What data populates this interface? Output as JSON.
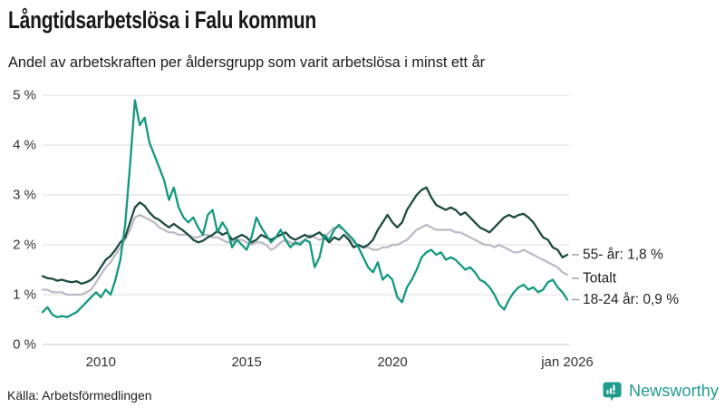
{
  "header": {
    "title": "Långtidsarbetslösa i Falu kommun",
    "subtitle": "Andel av arbetskraften per åldersgrupp som varit arbetslösa i minst ett år"
  },
  "source": {
    "label": "Källa: Arbetsförmedlingen"
  },
  "branding": {
    "name": "Newsworthy",
    "color": "#1f9c8e"
  },
  "chart_data": {
    "type": "line",
    "title": "Långtidsarbetslösa i Falu kommun",
    "subtitle": "Andel av arbetskraften per åldersgrupp som varit arbetslösa i minst ett år",
    "source": "Källa: Arbetsförmedlingen",
    "x_unit": "year",
    "x_start": 2008.0,
    "x_step": 0.166667,
    "xlim": [
      2008,
      2026.1
    ],
    "ylim": [
      0,
      5
    ],
    "grid": true,
    "legend_position": "right-end-labels",
    "y_ticks": [
      {
        "v": 0,
        "label": "0 %"
      },
      {
        "v": 1,
        "label": "1 %"
      },
      {
        "v": 2,
        "label": "2 %"
      },
      {
        "v": 3,
        "label": "3 %"
      },
      {
        "v": 4,
        "label": "4 %"
      },
      {
        "v": 5,
        "label": "5 %"
      }
    ],
    "x_ticks": [
      {
        "x": 2010,
        "label": "2010"
      },
      {
        "x": 2015,
        "label": "2015"
      },
      {
        "x": 2020,
        "label": "2020"
      },
      {
        "x": 2026,
        "label": "jan 2026"
      }
    ],
    "grid_color": "#dcdce2",
    "zero_line_color": "#c8c8cf",
    "axis_label_color": "#333333",
    "annotation_dash_color": "#9a9aa2",
    "annotation_text_color": "#222222",
    "draw_order": [
      1,
      0,
      2
    ],
    "series": [
      {
        "name": "55- år",
        "end_label": "55- år: 1,8 %",
        "end_value": 1.8,
        "color": "#1d4b40",
        "width": 2.3,
        "label_dy": 0,
        "values": [
          1.37,
          1.33,
          1.32,
          1.28,
          1.3,
          1.27,
          1.25,
          1.27,
          1.22,
          1.25,
          1.3,
          1.4,
          1.55,
          1.7,
          1.78,
          1.9,
          2.05,
          2.15,
          2.45,
          2.75,
          2.85,
          2.78,
          2.65,
          2.55,
          2.5,
          2.42,
          2.35,
          2.42,
          2.35,
          2.28,
          2.2,
          2.1,
          2.05,
          2.08,
          2.15,
          2.2,
          2.28,
          2.2,
          2.25,
          2.1,
          2.15,
          2.2,
          2.15,
          2.05,
          2.1,
          2.2,
          2.15,
          2.1,
          2.15,
          2.2,
          2.25,
          2.15,
          2.1,
          2.15,
          2.2,
          2.15,
          2.2,
          2.25,
          2.15,
          2.05,
          2.15,
          2.1,
          2.2,
          2.1,
          1.95,
          2.0,
          1.95,
          2.0,
          2.1,
          2.3,
          2.45,
          2.6,
          2.45,
          2.35,
          2.45,
          2.7,
          2.85,
          3.0,
          3.1,
          3.15,
          2.95,
          2.8,
          2.75,
          2.7,
          2.75,
          2.7,
          2.6,
          2.65,
          2.55,
          2.45,
          2.35,
          2.3,
          2.25,
          2.35,
          2.45,
          2.55,
          2.6,
          2.55,
          2.6,
          2.62,
          2.55,
          2.45,
          2.3,
          2.15,
          2.1,
          1.95,
          1.9,
          1.75,
          1.8
        ]
      },
      {
        "name": "Totalt",
        "end_label": "Totalt",
        "end_value": 1.4,
        "color": "#bcb8c5",
        "width": 2.2,
        "label_dy": 4,
        "values": [
          1.1,
          1.1,
          1.05,
          1.05,
          1.05,
          1.0,
          1.0,
          1.0,
          1.0,
          1.05,
          1.1,
          1.25,
          1.4,
          1.55,
          1.65,
          1.8,
          1.95,
          2.1,
          2.3,
          2.55,
          2.6,
          2.55,
          2.5,
          2.45,
          2.35,
          2.3,
          2.25,
          2.25,
          2.2,
          2.2,
          2.2,
          2.15,
          2.15,
          2.2,
          2.2,
          2.15,
          2.15,
          2.1,
          2.05,
          2.05,
          2.1,
          2.1,
          2.05,
          2.0,
          2.05,
          2.05,
          2.0,
          1.9,
          1.95,
          2.05,
          2.1,
          2.05,
          2.0,
          2.05,
          2.1,
          2.2,
          2.15,
          2.1,
          2.15,
          2.25,
          2.35,
          2.35,
          2.3,
          2.15,
          2.05,
          2.0,
          1.95,
          1.95,
          1.9,
          1.9,
          1.95,
          1.95,
          2.0,
          2.0,
          2.05,
          2.1,
          2.2,
          2.3,
          2.35,
          2.4,
          2.35,
          2.3,
          2.3,
          2.3,
          2.3,
          2.25,
          2.25,
          2.2,
          2.15,
          2.1,
          2.05,
          2.0,
          2.0,
          1.95,
          2.0,
          1.95,
          1.9,
          1.85,
          1.85,
          1.9,
          1.85,
          1.8,
          1.75,
          1.7,
          1.65,
          1.6,
          1.55,
          1.45,
          1.4
        ]
      },
      {
        "name": "18-24 år",
        "end_label": "18-24 år: 0,9 %",
        "end_value": 0.9,
        "color": "#12997e",
        "width": 2.3,
        "label_dy": 0,
        "values": [
          0.65,
          0.75,
          0.6,
          0.55,
          0.57,
          0.55,
          0.6,
          0.65,
          0.75,
          0.85,
          0.95,
          1.05,
          0.95,
          1.1,
          1.0,
          1.3,
          1.7,
          2.4,
          3.6,
          4.9,
          4.4,
          4.55,
          4.05,
          3.8,
          3.55,
          3.3,
          2.9,
          3.15,
          2.75,
          2.55,
          2.45,
          2.55,
          2.35,
          2.2,
          2.6,
          2.7,
          2.25,
          2.45,
          2.3,
          1.95,
          2.1,
          2.0,
          1.9,
          2.15,
          2.55,
          2.35,
          2.2,
          2.05,
          2.15,
          2.3,
          2.1,
          1.95,
          2.05,
          2.0,
          2.1,
          2.05,
          1.55,
          1.75,
          2.2,
          2.1,
          2.3,
          2.4,
          2.3,
          2.2,
          2.1,
          1.95,
          1.75,
          1.55,
          1.45,
          1.65,
          1.3,
          1.4,
          1.3,
          0.95,
          0.85,
          1.15,
          1.3,
          1.5,
          1.75,
          1.85,
          1.9,
          1.8,
          1.85,
          1.7,
          1.75,
          1.7,
          1.6,
          1.5,
          1.55,
          1.45,
          1.3,
          1.25,
          1.15,
          1.0,
          0.8,
          0.7,
          0.9,
          1.05,
          1.15,
          1.2,
          1.1,
          1.15,
          1.05,
          1.1,
          1.25,
          1.3,
          1.15,
          1.05,
          0.9
        ]
      }
    ]
  }
}
